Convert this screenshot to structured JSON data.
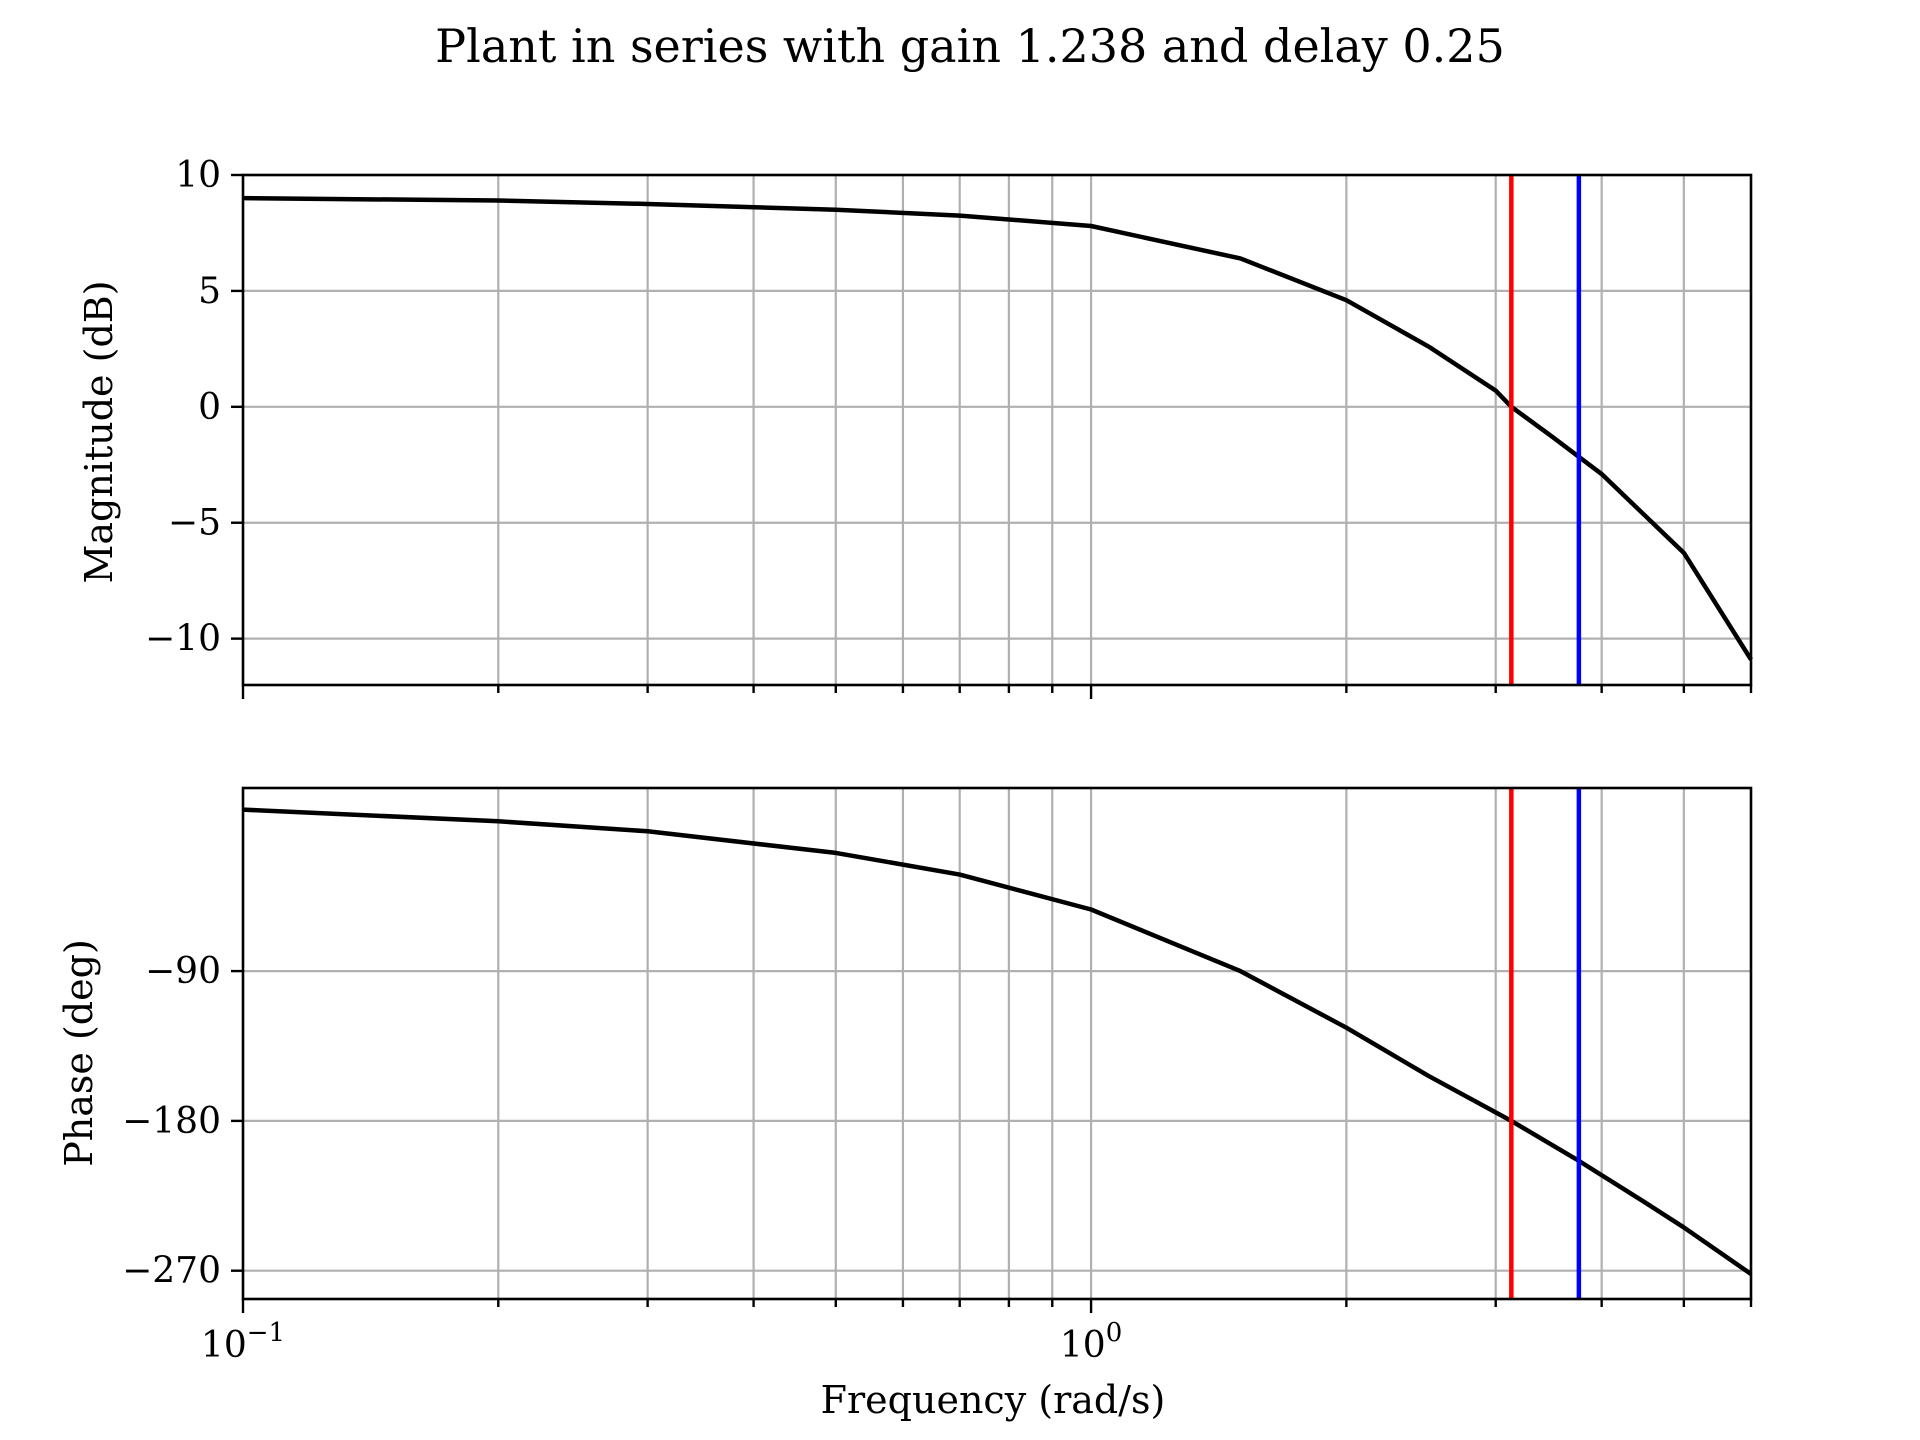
{
  "title": "Plant in series with gain 1.238 and delay 0.25",
  "chart_data": [
    {
      "type": "line",
      "panel": "magnitude",
      "xscale": "log",
      "xlim": [
        0.1,
        6.0
      ],
      "ylim": [
        -12,
        10
      ],
      "ylabel": "Magnitude (dB)",
      "yticks": [
        10,
        5,
        0,
        -5,
        -10
      ],
      "ytick_labels": [
        "10",
        "5",
        "0",
        "−5",
        "−10"
      ],
      "grid": true,
      "series": [
        {
          "color": "#000000",
          "x": [
            0.1,
            0.2,
            0.3,
            0.5,
            0.7,
            1.0,
            1.5,
            2.0,
            2.5,
            3.0,
            3.13,
            3.5,
            4.0,
            5.0,
            6.0
          ],
          "y": [
            9.0,
            8.9,
            8.75,
            8.5,
            8.25,
            7.8,
            6.4,
            4.6,
            2.6,
            0.7,
            0.0,
            -1.3,
            -2.9,
            -6.3,
            -10.9
          ]
        }
      ],
      "vlines": [
        {
          "x": 3.13,
          "color": "#ff0000"
        },
        {
          "x": 3.76,
          "color": "#0000ff"
        }
      ]
    },
    {
      "type": "line",
      "panel": "phase",
      "xscale": "log",
      "xlim": [
        0.1,
        6.0
      ],
      "ylim": [
        -287,
        20
      ],
      "ylabel": "Phase (deg)",
      "xlabel": "Frequency (rad/s)",
      "yticks": [
        -90,
        -180,
        -270
      ],
      "ytick_labels": [
        "−90",
        "−180",
        "−270"
      ],
      "xticks": [
        0.1,
        1.0
      ],
      "xtick_labels": [
        {
          "base": "10",
          "exp": "−1"
        },
        {
          "base": "10",
          "exp": "0"
        }
      ],
      "grid": true,
      "series": [
        {
          "color": "#000000",
          "x": [
            0.1,
            0.2,
            0.3,
            0.5,
            0.7,
            1.0,
            1.5,
            2.0,
            2.5,
            3.13,
            3.76,
            4.5,
            5.0,
            6.0
          ],
          "y": [
            7.0,
            0.0,
            -6.0,
            -19.0,
            -32.0,
            -53.0,
            -90.0,
            -124.0,
            -153.0,
            -180.0,
            -204.0,
            -229.0,
            -244.0,
            -272.0
          ]
        }
      ],
      "vlines": [
        {
          "x": 3.13,
          "color": "#ff0000"
        },
        {
          "x": 3.76,
          "color": "#0000ff"
        }
      ]
    }
  ]
}
